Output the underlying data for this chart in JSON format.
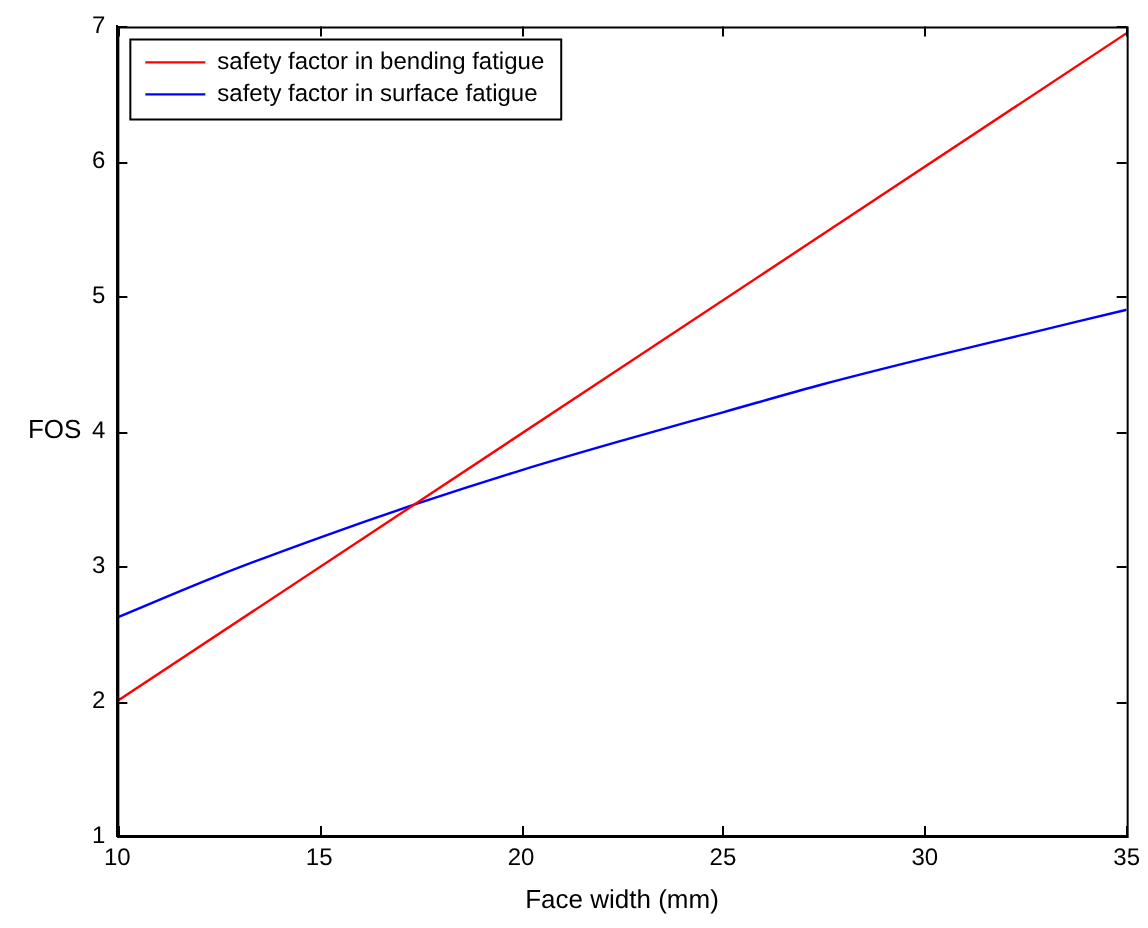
{
  "chart_data": {
    "type": "line",
    "xlabel": "Face width (mm)",
    "ylabel": "FOS",
    "xlim": [
      10,
      35
    ],
    "xticks": [
      10,
      15,
      20,
      25,
      30,
      35
    ],
    "ylim": [
      1,
      7
    ],
    "yticks": [
      1,
      2,
      3,
      4,
      5,
      6,
      7
    ],
    "grid": false,
    "legend": "top left",
    "marker": "none",
    "line_style": "solid",
    "series": [
      {
        "name": "safety factor in bending fatigue",
        "color": "#ff0000",
        "x": [
          10,
          35
        ],
        "values": [
          2,
          6.95
        ]
      },
      {
        "name": "safety factor in surface fatigue",
        "color": "#0000ff",
        "x": [
          10,
          12.5,
          15,
          17.5,
          20,
          22.5,
          25,
          27.5,
          30,
          32.5,
          35
        ],
        "values": [
          2.62,
          2.93,
          3.21,
          3.47,
          3.71,
          3.93,
          4.14,
          4.35,
          4.54,
          4.72,
          4.9
        ]
      }
    ]
  }
}
